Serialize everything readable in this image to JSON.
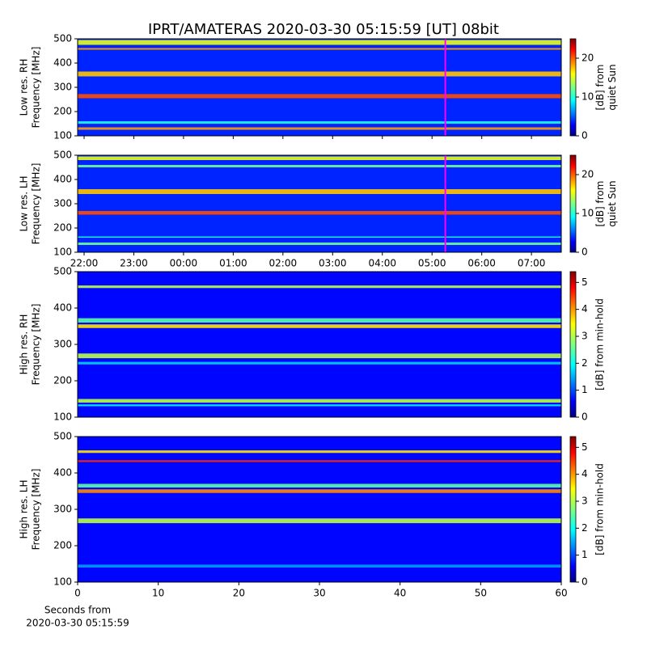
{
  "title": "IPRT/AMATERAS 2020-03-30 05:15:59 [UT]   08bit",
  "chart_data": [
    {
      "type": "spectrogram",
      "ylabel": [
        "Low res. RH",
        "Frequency [MHz]"
      ],
      "xlim": [
        21.87,
        31.6
      ],
      "ylim": [
        100,
        500
      ],
      "yticks": [
        100,
        200,
        300,
        400,
        500
      ],
      "clim": [
        0,
        25
      ],
      "cticks": [
        0,
        10,
        20
      ],
      "clabel": [
        "[dB] from",
        "quiet Sun"
      ],
      "background": 4,
      "marker_x": 29.267,
      "marker_color": "#ff00ff",
      "bands": {
        "low": [
          475,
          455,
          345,
          255,
          150,
          125
        ],
        "high": [
          495,
          462,
          365,
          272,
          160,
          135
        ],
        "level": [
          15,
          18,
          17,
          20,
          10,
          18
        ]
      }
    },
    {
      "type": "spectrogram",
      "ylabel": [
        "Low res. LH",
        "Frequency [MHz]"
      ],
      "xlim": [
        21.87,
        31.6
      ],
      "ylim": [
        100,
        500
      ],
      "yticks": [
        100,
        200,
        300,
        400,
        500
      ],
      "xticks": [
        {
          "value": 22,
          "label": "22:00"
        },
        {
          "value": 23,
          "label": "23:00"
        },
        {
          "value": 24,
          "label": "00:00"
        },
        {
          "value": 25,
          "label": "01:00"
        },
        {
          "value": 26,
          "label": "02:00"
        },
        {
          "value": 27,
          "label": "03:00"
        },
        {
          "value": 28,
          "label": "04:00"
        },
        {
          "value": 29,
          "label": "05:00"
        },
        {
          "value": 30,
          "label": "06:00"
        },
        {
          "value": 31,
          "label": "07:00"
        }
      ],
      "clim": [
        0,
        25
      ],
      "cticks": [
        0,
        10,
        20
      ],
      "clabel": [
        "[dB] from",
        "quiet Sun"
      ],
      "background": 4,
      "marker_x": 29.267,
      "marker_color": "#ff00ff",
      "bands": {
        "low": [
          480,
          450,
          340,
          255,
          160,
          130
        ],
        "high": [
          495,
          460,
          360,
          270,
          165,
          140
        ],
        "level": [
          15,
          12,
          17,
          20,
          10,
          12
        ]
      }
    },
    {
      "type": "spectrogram",
      "ylabel": [
        "High res. RH",
        "Frequency [MHz]"
      ],
      "xlim": [
        0,
        60
      ],
      "ylim": [
        100,
        500
      ],
      "yticks": [
        100,
        200,
        300,
        400,
        500
      ],
      "clim": [
        0,
        5.4
      ],
      "cticks": [
        0,
        1,
        2,
        3,
        4,
        5
      ],
      "clabel": [
        "[dB] from min-hold"
      ],
      "background": 0.7,
      "bands": {
        "low": [
          455,
          360,
          345,
          262,
          245,
          140,
          130
        ],
        "high": [
          462,
          372,
          355,
          275,
          252,
          150,
          135
        ],
        "level": [
          3,
          2.5,
          3.5,
          3,
          1.8,
          3,
          2
        ]
      }
    },
    {
      "type": "spectrogram",
      "ylabel": [
        "High res. LH",
        "Frequency [MHz]"
      ],
      "xlim": [
        0,
        60
      ],
      "ylim": [
        100,
        500
      ],
      "yticks": [
        100,
        200,
        300,
        400,
        500
      ],
      "xticks": [
        0,
        10,
        20,
        30,
        40,
        50,
        60
      ],
      "xlabel": [
        "Seconds from",
        "2020-03-30 05:15:59"
      ],
      "clim": [
        0,
        5.4
      ],
      "cticks": [
        0,
        1,
        2,
        3,
        4,
        5
      ],
      "clabel": [
        "[dB] from min-hold"
      ],
      "background": 0.7,
      "bands": {
        "low": [
          455,
          430,
          360,
          345,
          262,
          140
        ],
        "high": [
          462,
          435,
          370,
          355,
          275,
          148
        ],
        "level": [
          3.5,
          4.5,
          2.5,
          4,
          3,
          1.5
        ]
      }
    }
  ]
}
